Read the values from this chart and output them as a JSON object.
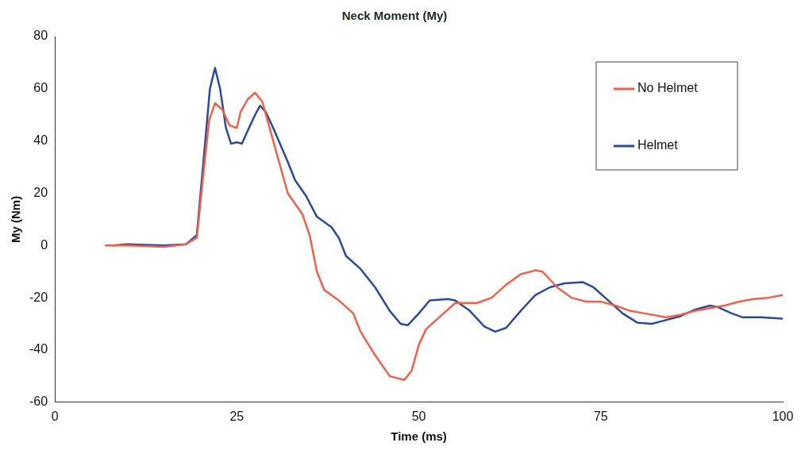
{
  "chart_data": {
    "type": "line",
    "title": "Neck Moment (My)",
    "xlabel": "Time (ms)",
    "ylabel": "My (Nm)",
    "xlim": [
      0,
      100
    ],
    "xticks": [
      0,
      25,
      50,
      75,
      100
    ],
    "ylim": [
      -60,
      80
    ],
    "yticks": [
      -60,
      -40,
      -20,
      0,
      20,
      40,
      60,
      80
    ],
    "grid": false,
    "legend": "top right",
    "marker": "none",
    "line_style": "solid",
    "series": [
      {
        "name": "No Helmet",
        "color": "#f0604a",
        "x": [
          7,
          10,
          15,
          18,
          19.5,
          20.5,
          21.2,
          22,
          23,
          24,
          25,
          25.5,
          26.5,
          27.5,
          28.5,
          29.5,
          31,
          32,
          34,
          35,
          36,
          37,
          39,
          41,
          42,
          44,
          46,
          48,
          49,
          50,
          51,
          53,
          55,
          58,
          60,
          62,
          64,
          66,
          67,
          69,
          71,
          73,
          75,
          77,
          79,
          81,
          84,
          86,
          88,
          90,
          92,
          94,
          96,
          98,
          100
        ],
        "values": [
          0,
          0,
          -0.5,
          0.5,
          3,
          30,
          48,
          54.5,
          52,
          46,
          45,
          51,
          56,
          58.5,
          55,
          45,
          30,
          20,
          12,
          4,
          -10,
          -17,
          -21,
          -26,
          -33,
          -42,
          -50,
          -51.5,
          -48,
          -38,
          -32,
          -27,
          -22,
          -22,
          -20,
          -15,
          -11,
          -9.5,
          -10,
          -16,
          -20,
          -21.5,
          -21.5,
          -23,
          -25,
          -26,
          -27.5,
          -26.5,
          -25,
          -24,
          -23,
          -21.5,
          -20.5,
          -20,
          -19
        ]
      },
      {
        "name": "Helmet",
        "color": "#2b4a9a",
        "x": [
          8,
          10,
          15,
          18,
          19.5,
          20.5,
          21.3,
          22,
          22.7,
          23.5,
          24.2,
          25,
          25.7,
          26.5,
          27.5,
          28.2,
          29,
          30,
          32,
          33,
          34.5,
          36,
          38,
          39,
          40,
          42,
          44,
          46,
          47.5,
          48.5,
          50,
          51.5,
          54,
          55,
          57,
          59,
          60.5,
          62,
          64,
          66,
          68,
          70,
          72.5,
          74,
          76,
          78,
          80,
          82,
          84,
          86,
          88,
          90,
          91,
          93,
          94.5,
          97,
          100
        ],
        "values": [
          0,
          0.5,
          0,
          0.5,
          4,
          35,
          60,
          68,
          60,
          45,
          39,
          39.5,
          39,
          44,
          50,
          53.5,
          51,
          45,
          32,
          25,
          19,
          11,
          7,
          3,
          -4,
          -9,
          -16,
          -25,
          -30,
          -30.5,
          -26,
          -21,
          -20.5,
          -21,
          -25,
          -31,
          -33,
          -31.5,
          -25,
          -19,
          -16,
          -14.5,
          -14,
          -16,
          -21,
          -26,
          -29.5,
          -30,
          -28.5,
          -27,
          -24.5,
          -23,
          -23.5,
          -26,
          -27.5,
          -27.5,
          -28
        ]
      }
    ]
  }
}
